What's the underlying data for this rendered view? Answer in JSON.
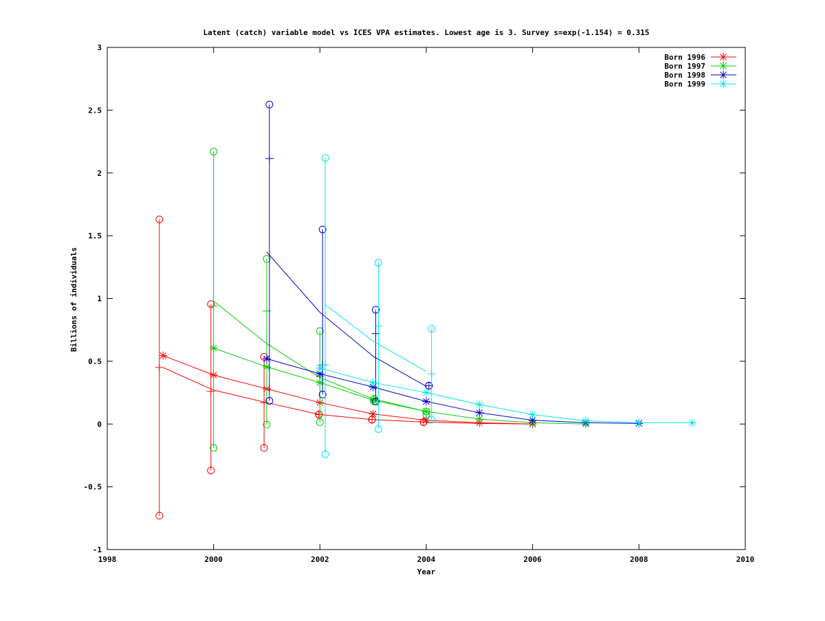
{
  "chart_data": {
    "type": "line",
    "title": "Latent (catch) variable model vs ICES VPA estimates. Lowest age is 3. Survey s=exp(-1.154) = 0.315",
    "xlabel": "Year",
    "ylabel": "Billions of individuals",
    "xlim": [
      1998,
      2010
    ],
    "ylim": [
      -1,
      3
    ],
    "xticks": [
      1998,
      2000,
      2002,
      2004,
      2006,
      2008,
      2010
    ],
    "yticks": [
      -1,
      -0.5,
      0,
      0.5,
      1,
      1.5,
      2,
      2.5,
      3
    ],
    "xtick_labels": [
      "1998",
      "2000",
      "2002",
      "2004",
      "2006",
      "2008",
      "2010"
    ],
    "ytick_labels": [
      "-1",
      "-0.5",
      "0",
      "0.5",
      "1",
      "1.5",
      "2",
      "2.5",
      "3"
    ],
    "legend_position": "top-right",
    "series": [
      {
        "name": "Born 1996",
        "color": "#ff0000",
        "vpa_star": {
          "x": [
            1999.05,
            2000.0,
            2001.0,
            2002.0,
            2003.0,
            2004.0,
            2005.0,
            2006.0
          ],
          "y": [
            0.545,
            0.39,
            0.28,
            0.17,
            0.08,
            0.03,
            0.01,
            0.0
          ]
        },
        "model_line": {
          "x": [
            1999.05,
            2000.0,
            2001.0,
            2002.0,
            2003.0,
            2004.0,
            2005.0,
            2006.0
          ],
          "y": [
            0.45,
            0.27,
            0.17,
            0.075,
            0.035,
            0.015,
            0.005,
            0.0
          ]
        },
        "survey_intervals": [
          {
            "x": 1998.98,
            "point": 0.45,
            "low": -0.73,
            "high": 1.63
          },
          {
            "x": 1999.95,
            "point": 0.26,
            "low": -0.37,
            "high": 0.955
          },
          {
            "x": 2000.95,
            "point": 0.17,
            "low": -0.19,
            "high": 0.535
          },
          {
            "x": 2001.98,
            "point": 0.075,
            "low": 0.075,
            "high": 0.075
          },
          {
            "x": 2002.98,
            "point": 0.035,
            "low": 0.035,
            "high": 0.035
          },
          {
            "x": 2003.95,
            "point": 0.015,
            "low": 0.015,
            "high": 0.015
          }
        ]
      },
      {
        "name": "Born 1997",
        "color": "#00cc00",
        "vpa_star": {
          "x": [
            2000.0,
            2001.0,
            2002.0,
            2003.0,
            2004.0,
            2005.0,
            2006.0,
            2007.0
          ],
          "y": [
            0.605,
            0.455,
            0.33,
            0.19,
            0.1,
            0.04,
            0.01,
            0.0
          ]
        },
        "model_line": {
          "x": [
            2000.0,
            2001.0,
            2002.0,
            2003.0,
            2004.0
          ],
          "y": [
            0.98,
            0.64,
            0.37,
            0.2,
            0.1
          ]
        },
        "survey_intervals": [
          {
            "x": 2000.0,
            "point": 0.94,
            "low": -0.19,
            "high": 2.17
          },
          {
            "x": 2001.0,
            "point": 0.9,
            "low": -0.005,
            "high": 1.315
          },
          {
            "x": 2002.0,
            "point": 0.38,
            "low": 0.015,
            "high": 0.74
          },
          {
            "x": 2003.02,
            "point": 0.2,
            "low": 0.18,
            "high": 0.2
          },
          {
            "x": 2004.0,
            "point": 0.1,
            "low": 0.075,
            "high": 0.1
          }
        ]
      },
      {
        "name": "Born 1998",
        "color": "#0000cc",
        "vpa_star": {
          "x": [
            2001.0,
            2002.0,
            2003.0,
            2004.0,
            2005.0,
            2006.0,
            2007.0,
            2008.0
          ],
          "y": [
            0.52,
            0.4,
            0.295,
            0.18,
            0.09,
            0.03,
            0.01,
            0.005
          ]
        },
        "model_line": {
          "x": [
            2001.0,
            2002.0,
            2003.0,
            2004.0
          ],
          "y": [
            1.37,
            0.89,
            0.54,
            0.3
          ]
        },
        "survey_intervals": [
          {
            "x": 2001.05,
            "point": 2.115,
            "low": 0.185,
            "high": 2.545
          },
          {
            "x": 2002.05,
            "point": 0.47,
            "low": 0.235,
            "high": 1.55
          },
          {
            "x": 2003.05,
            "point": 0.72,
            "low": 0.18,
            "high": 0.91
          },
          {
            "x": 2004.05,
            "point": 0.305,
            "low": 0.305,
            "high": 0.305
          }
        ]
      },
      {
        "name": "Born 1999",
        "color": "#00e5e5",
        "vpa_star": {
          "x": [
            2002.0,
            2003.0,
            2004.0,
            2005.0,
            2006.0,
            2007.0,
            2008.0,
            2009.0
          ],
          "y": [
            0.445,
            0.33,
            0.25,
            0.155,
            0.075,
            0.025,
            0.01,
            0.01
          ]
        },
        "model_line": {
          "x": [
            2002.1,
            2003.0,
            2004.0
          ],
          "y": [
            0.95,
            0.66,
            0.42
          ]
        },
        "survey_intervals": [
          {
            "x": 2002.1,
            "point": 0.47,
            "low": -0.24,
            "high": 2.12
          },
          {
            "x": 2003.1,
            "point": 0.78,
            "low": -0.04,
            "high": 1.285
          },
          {
            "x": 2004.1,
            "point": 0.4,
            "low": 0.035,
            "high": 0.76
          }
        ]
      }
    ]
  }
}
